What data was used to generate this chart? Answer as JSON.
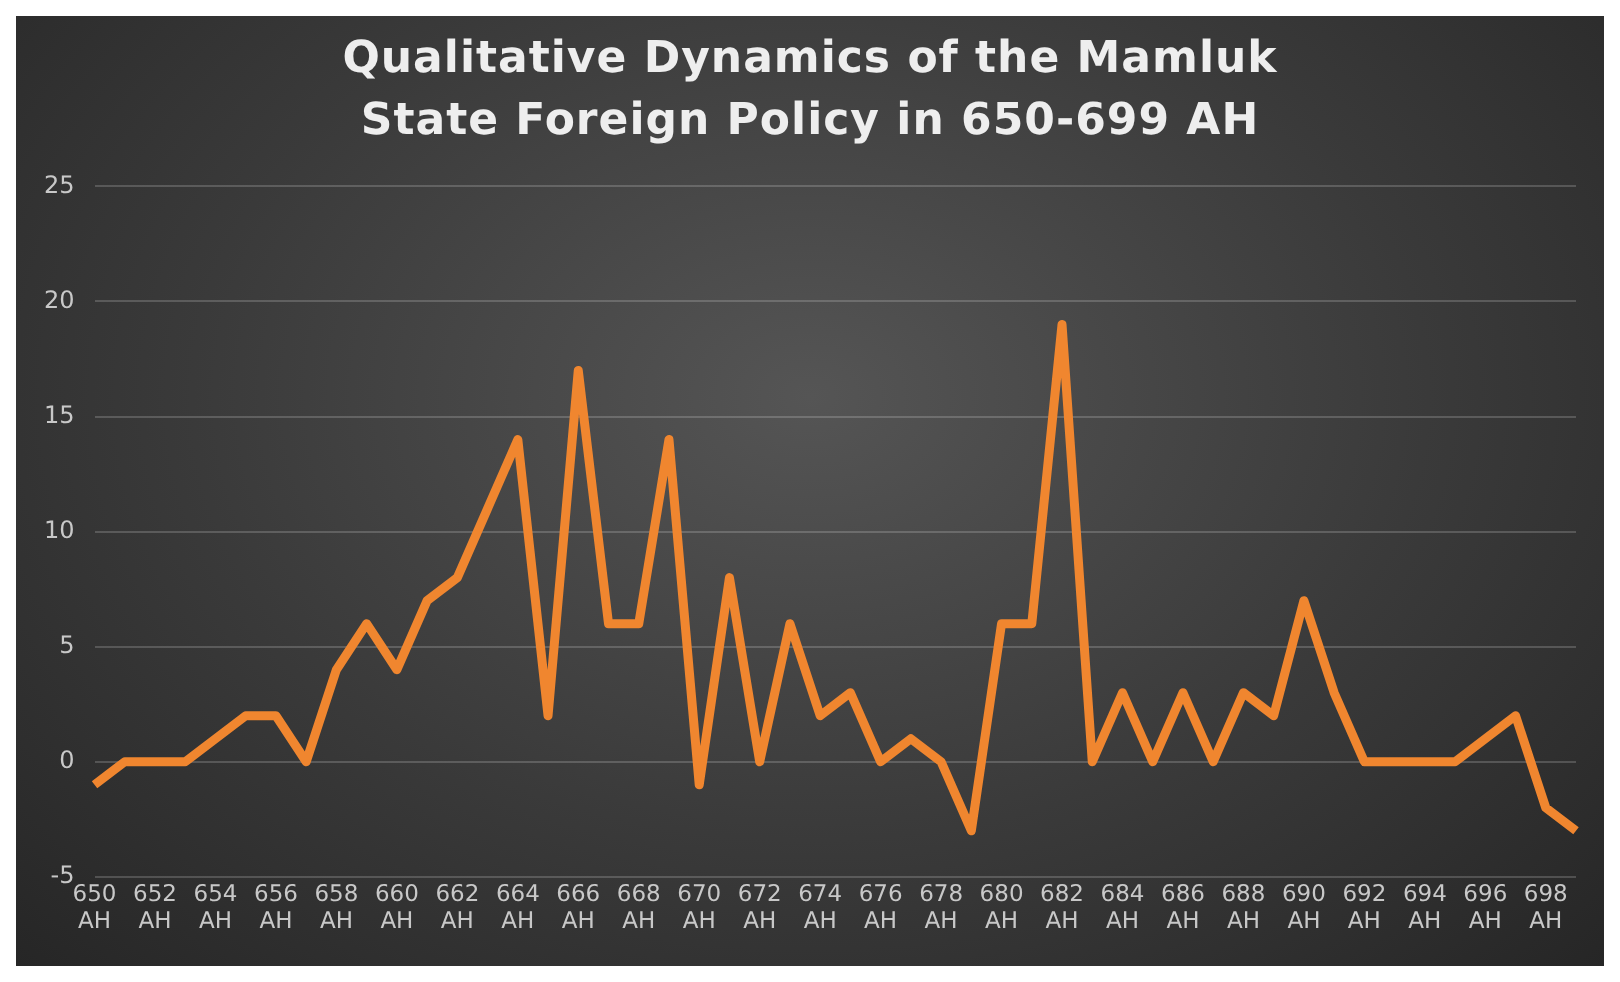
{
  "chart_data": {
    "type": "line",
    "title": "Qualitative Dynamics of the Mamluk State Foreign Policy in 650-699 AH",
    "categories": [
      "650 AH",
      null,
      "652 AH",
      null,
      "654 AH",
      null,
      "656 AH",
      null,
      "658 AH",
      null,
      "660 AH",
      null,
      "662 AH",
      null,
      "664 AH",
      null,
      "666 AH",
      null,
      "668 AH",
      null,
      "670 AH",
      null,
      "672 AH",
      null,
      "674 AH",
      null,
      "676 AH",
      null,
      "678 AH",
      null,
      "680 AH",
      null,
      "682 AH",
      null,
      "684 AH",
      null,
      "686 AH",
      null,
      "688 AH",
      null,
      "690 AH",
      null,
      "692 AH",
      null,
      "694 AH",
      null,
      "696 AH",
      null,
      "698 AH",
      null
    ],
    "series": [
      {
        "color": "#f0862f",
        "values": [
          -1,
          0,
          0,
          0,
          1,
          2,
          2,
          0,
          4,
          6,
          4,
          7,
          8,
          11,
          14,
          2,
          17,
          6,
          6,
          14,
          -1,
          8,
          0,
          6,
          2,
          3,
          0,
          1,
          0,
          -3,
          6,
          6,
          19,
          0,
          3,
          0,
          3,
          0,
          3,
          2,
          7,
          3,
          0,
          0,
          0,
          0,
          1,
          2,
          -2,
          -3
        ]
      }
    ],
    "ylim": [
      -5,
      25
    ],
    "yticks": [
      -5,
      0,
      5,
      10,
      15,
      20,
      25
    ],
    "grid": "y",
    "legend": false,
    "marker": "none",
    "line_style": "solid"
  }
}
